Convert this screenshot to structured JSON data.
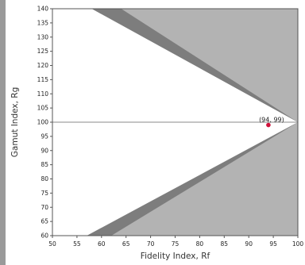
{
  "chart_data": {
    "type": "scatter",
    "xlabel": "Fidelity Index, Rf",
    "ylabel": "Gamut Index, Rg",
    "xlim": [
      50,
      100
    ],
    "ylim": [
      60,
      140
    ],
    "x_ticks": [
      50,
      55,
      60,
      65,
      70,
      75,
      80,
      85,
      90,
      95,
      100
    ],
    "y_ticks": [
      60,
      65,
      70,
      75,
      80,
      85,
      90,
      95,
      100,
      105,
      110,
      115,
      120,
      125,
      130,
      135,
      140
    ],
    "reference_line_y": 100,
    "regions": {
      "outer_color": "#b3b3b3",
      "band_color": "#7d7d7d",
      "inner_color": "#ffffff"
    },
    "point": {
      "x": 94,
      "y": 99,
      "label": "(94, 99)",
      "color": "#d0103a"
    },
    "grid": false,
    "legend": "none"
  }
}
